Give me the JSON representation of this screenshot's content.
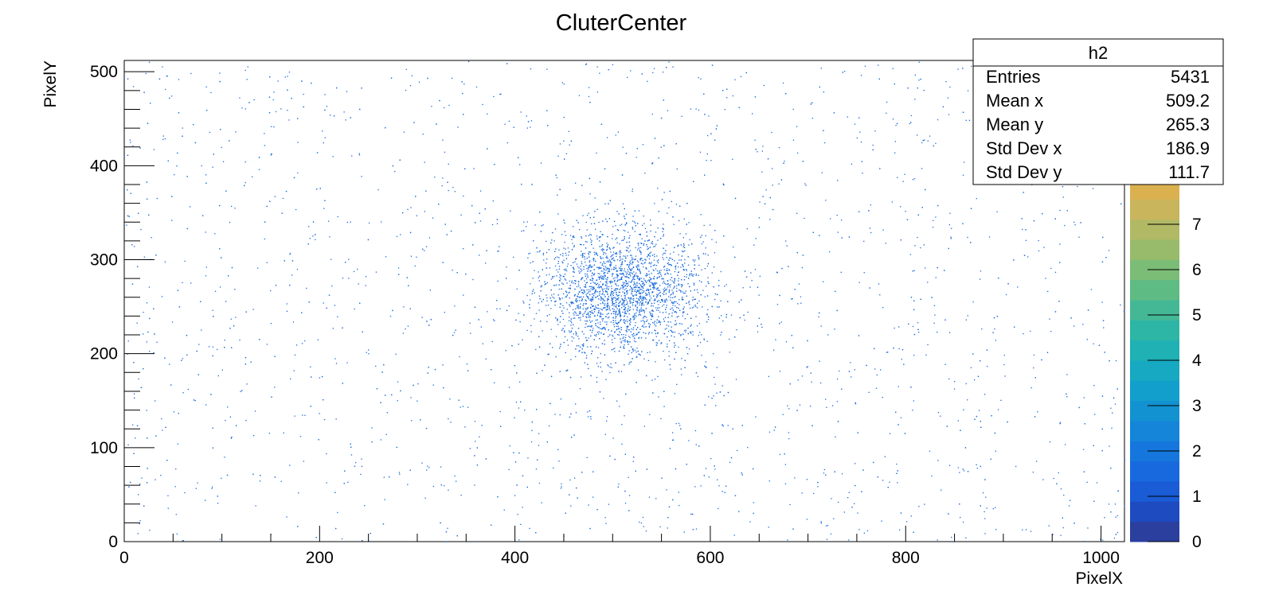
{
  "chart_data": {
    "type": "heatmap",
    "title": "CluterCenter",
    "xlabel": "PixelX",
    "ylabel": "PixelY",
    "xlim": [
      0,
      1024
    ],
    "ylim": [
      0,
      512
    ],
    "x_ticks": [
      0,
      200,
      400,
      600,
      800,
      1000
    ],
    "y_ticks": [
      0,
      100,
      200,
      300,
      400,
      500
    ],
    "z_ticks": [
      0,
      1,
      2,
      3,
      4,
      5,
      6,
      7
    ],
    "zlim": [
      0,
      8
    ],
    "distribution": {
      "description_free": true,
      "cluster_center": [
        509,
        265
      ],
      "cluster_sigma": [
        42,
        35
      ],
      "cluster_fraction": 0.55,
      "n_points_drawn": 5431
    },
    "palette": [
      "#2a3f9e",
      "#1f4bc1",
      "#1a5bd6",
      "#1769dd",
      "#1577dd",
      "#1485d8",
      "#1292d1",
      "#129fcb",
      "#16a9c1",
      "#1fb1b4",
      "#2db5a5",
      "#44b895",
      "#5fbb84",
      "#7bbc76",
      "#97bb6b",
      "#b1b964",
      "#c9b55c",
      "#dbb14f"
    ],
    "point_color": "#1769dd"
  },
  "stats_box": {
    "name": "h2",
    "rows": [
      {
        "label": "Entries",
        "value": "5431"
      },
      {
        "label": "Mean x",
        "value": "509.2"
      },
      {
        "label": "Mean y",
        "value": "265.3"
      },
      {
        "label": "Std Dev x",
        "value": "186.9"
      },
      {
        "label": "Std Dev y",
        "value": "111.7"
      }
    ]
  }
}
